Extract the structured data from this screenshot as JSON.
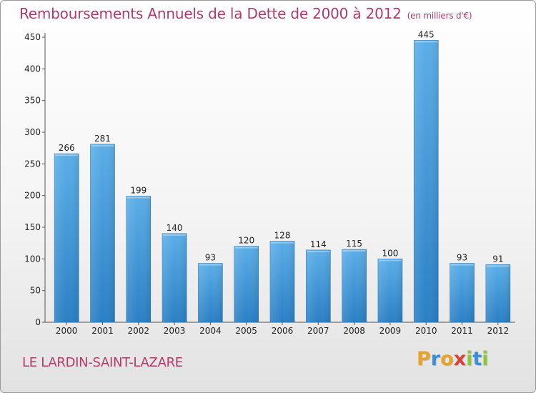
{
  "chart_data": {
    "type": "bar",
    "title": "Remboursements Annuels de la Dette de 2000 à 2012",
    "subtitle": "(en milliers d'€)",
    "categories": [
      "2000",
      "2001",
      "2002",
      "2003",
      "2004",
      "2005",
      "2006",
      "2007",
      "2008",
      "2009",
      "2010",
      "2011",
      "2012"
    ],
    "values": [
      266,
      281,
      199,
      140,
      93,
      120,
      128,
      114,
      115,
      100,
      445,
      93,
      91
    ],
    "ylim": [
      0,
      450
    ],
    "yticks": [
      0,
      50,
      100,
      150,
      200,
      250,
      300,
      350,
      400,
      450
    ],
    "grid": false,
    "colors": {
      "bar_top": "#5baee8",
      "bar_bottom": "#2a7fc4",
      "title": "#b03a6b"
    }
  },
  "footer": {
    "city": "LE LARDIN-SAINT-LAZARE",
    "logo_letters": [
      {
        "char": "P",
        "color": "#e8a12a"
      },
      {
        "char": "r",
        "color": "#3a8fd6"
      },
      {
        "char": "o",
        "color": "#e8a12a"
      },
      {
        "char": "x",
        "color": "#d4443a"
      },
      {
        "char": "i",
        "color": "#8cc63f"
      },
      {
        "char": "t",
        "color": "#3a8fd6"
      },
      {
        "char": "i",
        "color": "#8cc63f"
      }
    ]
  }
}
